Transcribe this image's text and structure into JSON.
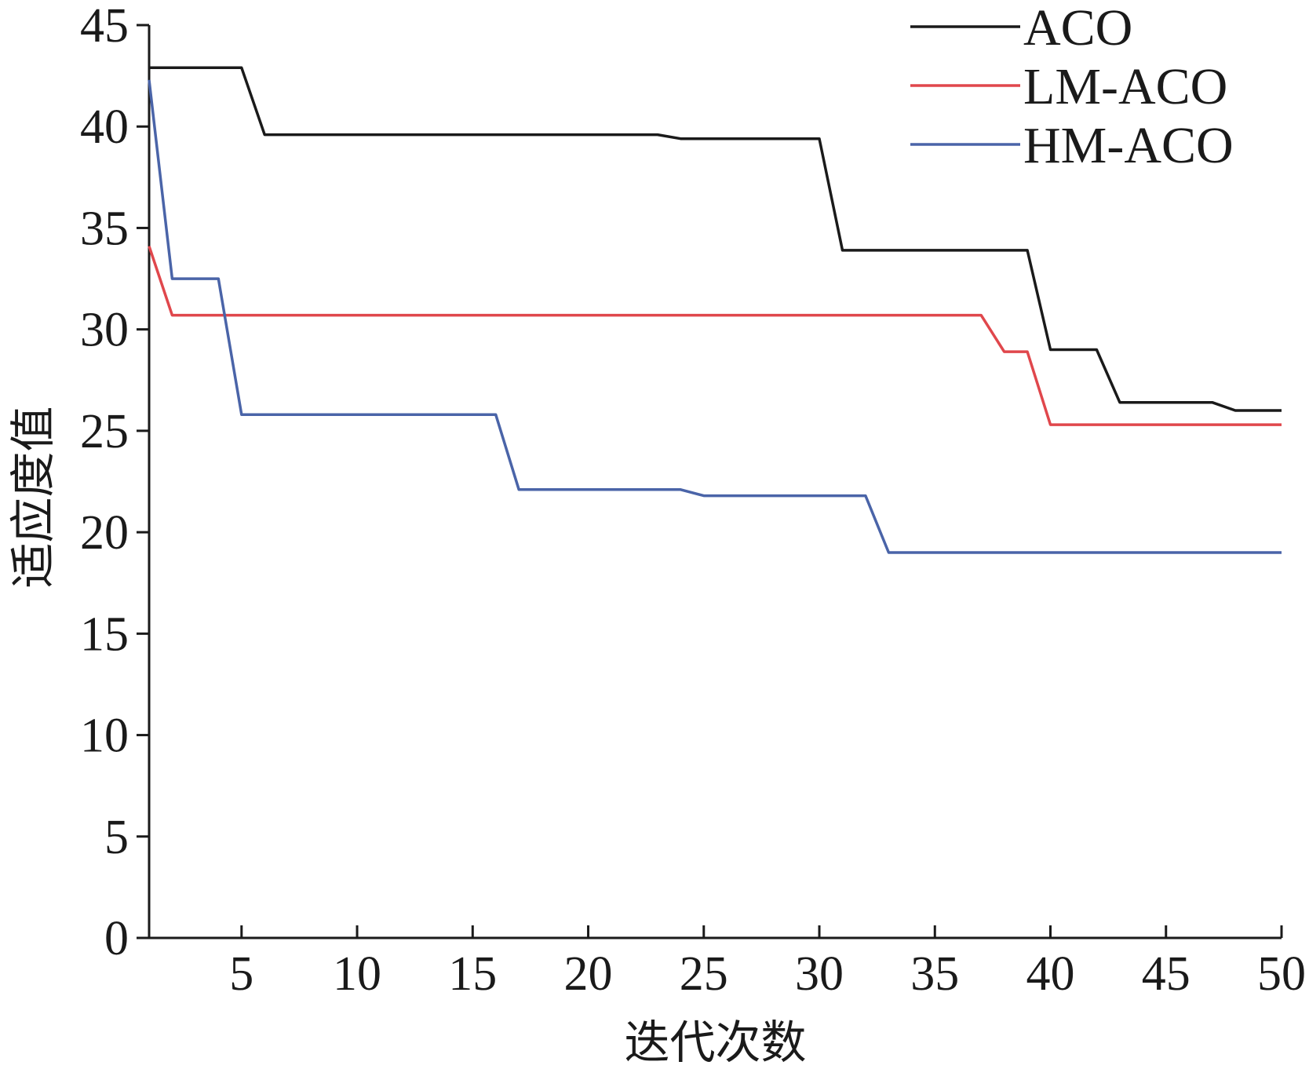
{
  "chart_data": {
    "type": "line",
    "xlabel": "迭代次数",
    "ylabel": "适应度值",
    "xlim": [
      1,
      50
    ],
    "ylim": [
      0,
      45
    ],
    "xticks": [
      5,
      10,
      15,
      20,
      25,
      30,
      35,
      40,
      45,
      50
    ],
    "yticks": [
      0,
      5,
      10,
      15,
      20,
      25,
      30,
      35,
      40,
      45
    ],
    "grid": false,
    "legend_position": "top-right",
    "series": [
      {
        "name": "ACO",
        "color": "#1a1a1a",
        "points": [
          [
            1,
            42.9
          ],
          [
            5,
            42.9
          ],
          [
            6,
            39.6
          ],
          [
            23,
            39.6
          ],
          [
            24,
            39.4
          ],
          [
            30,
            39.4
          ],
          [
            31,
            33.9
          ],
          [
            39,
            33.9
          ],
          [
            40,
            29.0
          ],
          [
            42,
            29.0
          ],
          [
            43,
            26.4
          ],
          [
            47,
            26.4
          ],
          [
            48,
            26.0
          ],
          [
            50,
            26.0
          ]
        ]
      },
      {
        "name": "LM-ACO",
        "color": "#e0474c",
        "points": [
          [
            1,
            34.1
          ],
          [
            2,
            30.7
          ],
          [
            37,
            30.7
          ],
          [
            38,
            28.9
          ],
          [
            39,
            28.9
          ],
          [
            40,
            25.3
          ],
          [
            50,
            25.3
          ]
        ]
      },
      {
        "name": "HM-ACO",
        "color": "#4a64a8",
        "points": [
          [
            1,
            42.3
          ],
          [
            2,
            32.5
          ],
          [
            4,
            32.5
          ],
          [
            5,
            25.8
          ],
          [
            16,
            25.8
          ],
          [
            17,
            22.1
          ],
          [
            24,
            22.1
          ],
          [
            25,
            21.8
          ],
          [
            32,
            21.8
          ],
          [
            33,
            19.0
          ],
          [
            50,
            19.0
          ]
        ]
      }
    ]
  }
}
